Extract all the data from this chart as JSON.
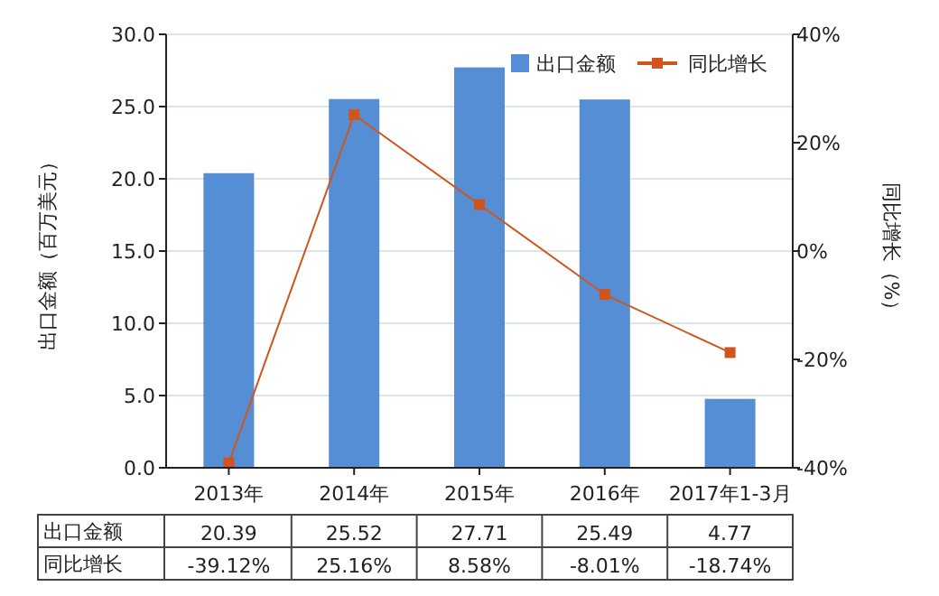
{
  "chart_data": {
    "type": "bar",
    "ylabel": "出口金额（百万美元）",
    "y2label": "同比增长（%）",
    "categories": [
      "2013年",
      "2014年",
      "2015年",
      "2016年",
      "2017年1-3月"
    ],
    "series": [
      {
        "name": "出口金额",
        "color": "#558ed5",
        "values": [
          20.39,
          25.52,
          27.71,
          25.49,
          4.77
        ],
        "value_labels": [
          "20.39",
          "25.52",
          "27.71",
          "25.49",
          "4.77"
        ]
      },
      {
        "name": "同比增长",
        "type": "line",
        "axis": "y2",
        "color": "#d2541d",
        "marker": "square",
        "values": [
          -39.12,
          25.16,
          8.58,
          -8.01,
          -18.74
        ],
        "value_labels": [
          "-39.12%",
          "25.16%",
          "8.58%",
          "-8.01%",
          "-18.74%"
        ]
      }
    ],
    "ylim": [
      0,
      30
    ],
    "yticks": [
      {
        "value": 0,
        "label": "0.0"
      },
      {
        "value": 5,
        "label": "5.0"
      },
      {
        "value": 10,
        "label": "10.0"
      },
      {
        "value": 15,
        "label": "15.0"
      },
      {
        "value": 20,
        "label": "20.0"
      },
      {
        "value": 25,
        "label": "25.0"
      },
      {
        "value": 30,
        "label": "30.0"
      }
    ],
    "y2lim": [
      -40,
      40
    ],
    "y2ticks": [
      {
        "value": -40,
        "label": "-40%"
      },
      {
        "value": -20,
        "label": "-20%"
      },
      {
        "value": 0,
        "label": "0%"
      },
      {
        "value": 20,
        "label": "20%"
      },
      {
        "value": 40,
        "label": "40%"
      }
    ],
    "grid": "y",
    "legend": "top right"
  }
}
